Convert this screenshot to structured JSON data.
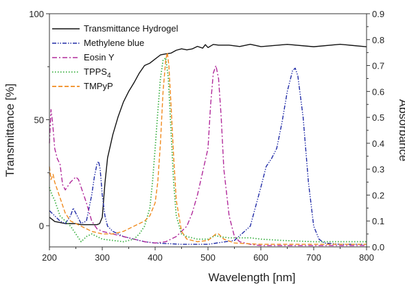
{
  "chart_data": {
    "type": "line",
    "title": "",
    "xlabel": "Wavelength [nm]",
    "ylabel_left": "Transmittance [%]",
    "ylabel_right": "Absorbance",
    "xlim": [
      200,
      800
    ],
    "ylim_left": [
      -10,
      100
    ],
    "ylim_right": [
      0,
      0.9
    ],
    "x_ticks": [
      200,
      300,
      400,
      500,
      600,
      700,
      800
    ],
    "y_left_ticks": [
      0,
      50,
      100
    ],
    "y_right_ticks": [
      0.0,
      0.1,
      0.2,
      0.3,
      0.4,
      0.5,
      0.6,
      0.7,
      0.8,
      0.9
    ],
    "grid": false,
    "legend_position": "top-left",
    "series": [
      {
        "name": "Transmittance Hydrogel",
        "axis": "left",
        "color": "#111111",
        "dash": "solid",
        "x": [
          200,
          210,
          220,
          230,
          240,
          250,
          260,
          270,
          280,
          290,
          295,
          300,
          305,
          310,
          320,
          330,
          340,
          350,
          360,
          370,
          380,
          390,
          400,
          410,
          420,
          430,
          440,
          450,
          460,
          470,
          480,
          490,
          495,
          500,
          510,
          520,
          540,
          560,
          580,
          600,
          650,
          700,
          750,
          800
        ],
        "y": [
          4,
          2,
          1.5,
          1,
          1,
          1,
          0.5,
          0.5,
          0.5,
          0.5,
          1,
          4,
          20,
          32,
          43,
          52,
          58,
          63,
          68,
          72,
          75,
          77,
          79,
          80,
          81,
          82,
          82.5,
          83,
          83.5,
          83.5,
          84,
          84,
          86,
          84.5,
          85,
          85,
          85,
          85,
          85,
          85,
          85,
          85,
          85,
          85
        ]
      },
      {
        "name": "Methylene blue",
        "axis": "right",
        "color": "#1f2aa6",
        "dash": "dashdotdot",
        "x": [
          200,
          210,
          220,
          230,
          240,
          245,
          250,
          260,
          270,
          280,
          285,
          290,
          293,
          296,
          300,
          305,
          310,
          320,
          340,
          360,
          380,
          400,
          450,
          500,
          550,
          580,
          600,
          610,
          620,
          630,
          640,
          650,
          660,
          665,
          670,
          680,
          690,
          700,
          710,
          720,
          750,
          800
        ],
        "y": [
          0.14,
          0.12,
          0.1,
          0.09,
          0.12,
          0.15,
          0.13,
          0.09,
          0.1,
          0.2,
          0.27,
          0.32,
          0.33,
          0.3,
          0.2,
          0.12,
          0.08,
          0.06,
          0.04,
          0.03,
          0.02,
          0.015,
          0.01,
          0.01,
          0.025,
          0.08,
          0.23,
          0.31,
          0.34,
          0.38,
          0.48,
          0.6,
          0.68,
          0.69,
          0.66,
          0.5,
          0.25,
          0.08,
          0.03,
          0.015,
          0.01,
          0.01
        ]
      },
      {
        "name": "Eosin Y",
        "axis": "right",
        "color": "#b0289a",
        "dash": "dashdot",
        "x": [
          200,
          203,
          206,
          210,
          215,
          220,
          225,
          230,
          240,
          250,
          255,
          260,
          270,
          280,
          290,
          300,
          320,
          340,
          360,
          380,
          400,
          420,
          440,
          460,
          470,
          480,
          490,
          500,
          505,
          510,
          515,
          520,
          525,
          530,
          540,
          550,
          560,
          580,
          600,
          700,
          800
        ],
        "y": [
          0.4,
          0.53,
          0.48,
          0.38,
          0.34,
          0.32,
          0.24,
          0.22,
          0.25,
          0.27,
          0.26,
          0.23,
          0.17,
          0.1,
          0.07,
          0.06,
          0.05,
          0.04,
          0.03,
          0.02,
          0.015,
          0.02,
          0.04,
          0.08,
          0.13,
          0.2,
          0.29,
          0.38,
          0.55,
          0.67,
          0.7,
          0.65,
          0.5,
          0.3,
          0.12,
          0.04,
          0.02,
          0.01,
          0.005,
          0.005,
          0.005
        ]
      },
      {
        "name": "TPPS4",
        "axis": "right",
        "color": "#3cb043",
        "dash": "dotted",
        "x": [
          200,
          205,
          210,
          220,
          230,
          240,
          250,
          260,
          270,
          280,
          300,
          320,
          340,
          360,
          370,
          380,
          390,
          395,
          400,
          405,
          410,
          415,
          420,
          425,
          430,
          435,
          440,
          450,
          460,
          480,
          500,
          515,
          520,
          540,
          560,
          580,
          600,
          640,
          700,
          800
        ],
        "y": [
          0.23,
          0.2,
          0.18,
          0.12,
          0.1,
          0.08,
          0.05,
          0.02,
          0.04,
          0.05,
          0.03,
          0.025,
          0.02,
          0.03,
          0.05,
          0.08,
          0.15,
          0.25,
          0.38,
          0.52,
          0.65,
          0.72,
          0.73,
          0.65,
          0.45,
          0.25,
          0.12,
          0.05,
          0.04,
          0.03,
          0.03,
          0.045,
          0.04,
          0.035,
          0.035,
          0.035,
          0.03,
          0.025,
          0.02,
          0.02
        ]
      },
      {
        "name": "TMPyP",
        "axis": "right",
        "color": "#f08a1d",
        "dash": "dashed",
        "x": [
          200,
          203,
          207,
          210,
          220,
          230,
          240,
          250,
          260,
          270,
          280,
          300,
          320,
          340,
          360,
          380,
          390,
          400,
          405,
          410,
          415,
          420,
          423,
          426,
          430,
          435,
          440,
          450,
          460,
          480,
          500,
          515,
          520,
          530,
          550,
          600,
          700,
          800
        ],
        "y": [
          0.31,
          0.26,
          0.28,
          0.25,
          0.19,
          0.13,
          0.1,
          0.09,
          0.08,
          0.07,
          0.06,
          0.05,
          0.05,
          0.06,
          0.08,
          0.1,
          0.12,
          0.17,
          0.25,
          0.4,
          0.6,
          0.72,
          0.75,
          0.7,
          0.55,
          0.35,
          0.18,
          0.06,
          0.03,
          0.02,
          0.025,
          0.05,
          0.05,
          0.03,
          0.015,
          0.01,
          0.01,
          0.01
        ]
      }
    ]
  },
  "legend_labels": {
    "transmittance": "Transmittance Hydrogel",
    "mb": "Methylene blue",
    "eosin": "Eosin Y",
    "tpps_main": "TPPS",
    "tpps_sub": "4",
    "tmpyp": "TMPyP"
  }
}
